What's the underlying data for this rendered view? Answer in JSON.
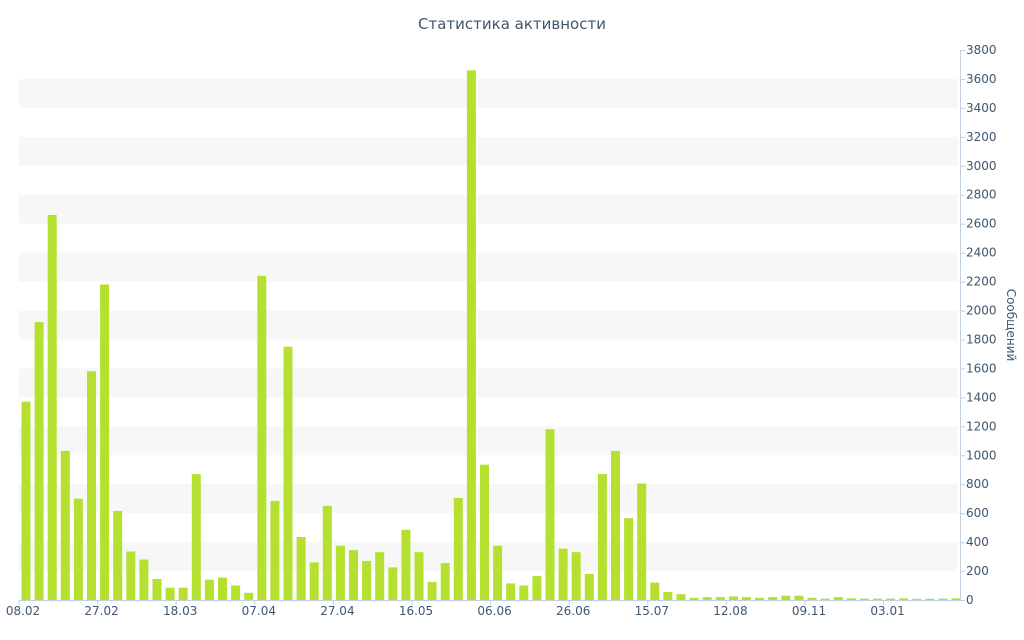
{
  "chart_data": {
    "type": "bar",
    "title": "Статистика активности",
    "ylabel": "Сообщений",
    "xlabel": "",
    "ylim": [
      0,
      3800
    ],
    "yticks": [
      0,
      200,
      400,
      600,
      800,
      1000,
      1200,
      1400,
      1600,
      1800,
      2000,
      2200,
      2400,
      2600,
      2800,
      3000,
      3200,
      3400,
      3600,
      3800
    ],
    "y_axis_side": "right",
    "grid": "alternating horizontal bands",
    "bar_color": "#b5e030",
    "text_color": "#3e576f",
    "band_color": "#f7f7f7",
    "xtick_labels": [
      {
        "label": "08.02",
        "index": 0
      },
      {
        "label": "27.02",
        "index": 6
      },
      {
        "label": "18.03",
        "index": 12
      },
      {
        "label": "07.04",
        "index": 18
      },
      {
        "label": "27.04",
        "index": 24
      },
      {
        "label": "16.05",
        "index": 30
      },
      {
        "label": "06.06",
        "index": 36
      },
      {
        "label": "26.06",
        "index": 42
      },
      {
        "label": "15.07",
        "index": 48
      },
      {
        "label": "12.08",
        "index": 54
      },
      {
        "label": "09.11",
        "index": 60
      },
      {
        "label": "03.01",
        "index": 66
      }
    ],
    "values": [
      1370,
      1920,
      2660,
      1030,
      700,
      1580,
      2180,
      615,
      335,
      280,
      145,
      85,
      85,
      870,
      140,
      155,
      100,
      50,
      2240,
      685,
      1750,
      435,
      260,
      650,
      375,
      345,
      270,
      330,
      225,
      485,
      330,
      125,
      255,
      705,
      3660,
      935,
      375,
      115,
      100,
      165,
      1180,
      355,
      330,
      180,
      870,
      1030,
      565,
      805,
      120,
      55,
      40,
      15,
      20,
      20,
      25,
      20,
      15,
      20,
      30,
      30,
      15,
      10,
      20,
      12,
      10,
      10,
      10,
      12,
      8,
      8,
      10,
      12
    ]
  }
}
